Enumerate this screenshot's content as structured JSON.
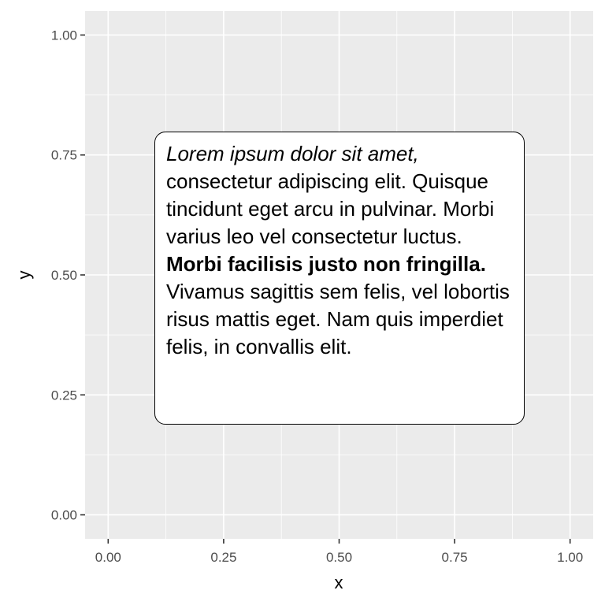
{
  "chart_data": {
    "type": "scatter",
    "title": "",
    "xlabel": "x",
    "ylabel": "y",
    "xlim": [
      -0.05,
      1.05
    ],
    "ylim": [
      -0.05,
      1.05
    ],
    "xticks": [
      0,
      0.25,
      0.5,
      0.75,
      1
    ],
    "xtick_labels": [
      "0.00",
      "0.25",
      "0.50",
      "0.75",
      "1.00"
    ],
    "yticks": [
      0,
      0.25,
      0.5,
      0.75,
      1
    ],
    "ytick_labels": [
      "0.00",
      "0.25",
      "0.50",
      "0.75",
      "1.00"
    ],
    "grid": true,
    "legend": "none",
    "annotation": {
      "center": [
        0.5,
        0.5
      ],
      "segments": [
        {
          "style": "italic",
          "text": "Lorem ipsum dolor sit amet,"
        },
        {
          "style": "plain",
          "text": " consectetur adipiscing elit. Quisque tincidunt eget arcu in pulvinar. Morbi varius leo vel consectetur luctus. "
        },
        {
          "style": "bold",
          "text": "Morbi facilisis justo non fringilla."
        },
        {
          "style": "plain",
          "text": " Vivamus sagittis sem felis, vel lobortis risus mattis eget. Nam quis imperdiet felis, in convallis elit."
        }
      ]
    },
    "colors": {
      "panel": "#ebebeb",
      "grid": "#ffffff",
      "tick_text": "#4d4d4d",
      "tick_mark": "#333333",
      "box_fill": "#ffffff",
      "box_border": "#000000"
    }
  }
}
